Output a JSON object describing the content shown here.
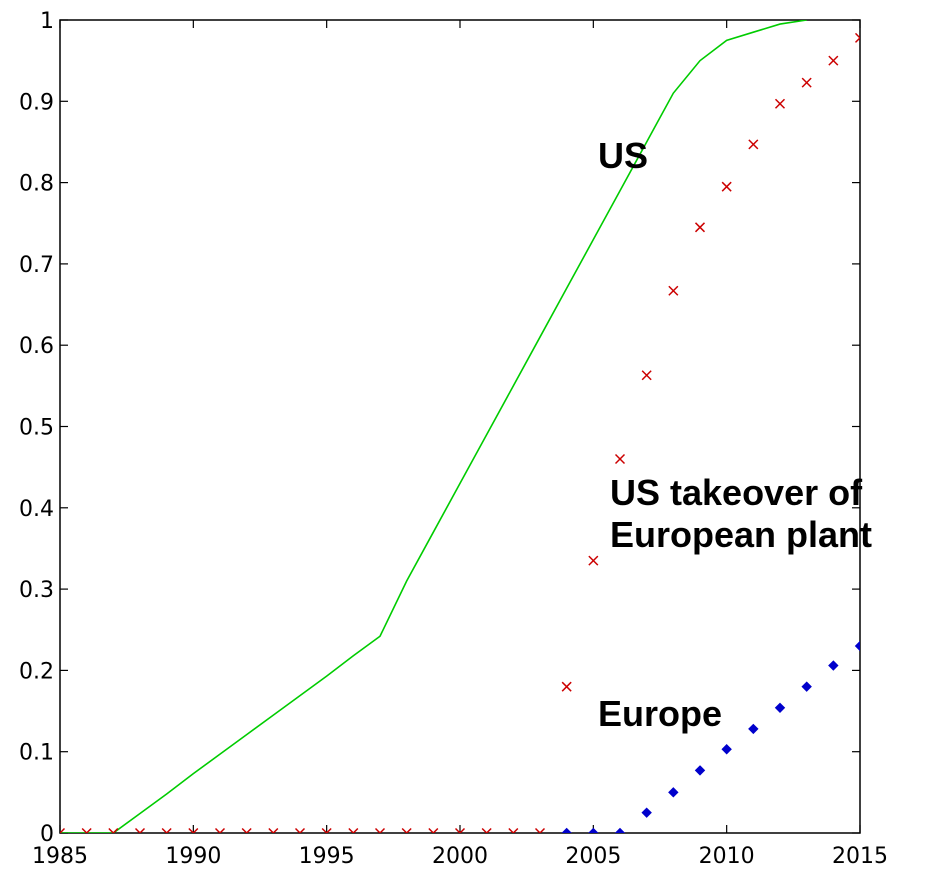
{
  "chart_data": {
    "type": "line",
    "title": "",
    "xlabel": "",
    "ylabel": "",
    "xlim": [
      1985,
      2015
    ],
    "ylim": [
      0,
      1
    ],
    "grid": false,
    "x_ticks": [
      1985,
      1990,
      1995,
      2000,
      2005,
      2010,
      2015
    ],
    "x_tick_labels": [
      "1985",
      "1990",
      "1995",
      "2000",
      "2005",
      "2010",
      "2015"
    ],
    "y_ticks": [
      0,
      0.1,
      0.2,
      0.3,
      0.4,
      0.5,
      0.6,
      0.7,
      0.8,
      0.9,
      1
    ],
    "y_tick_labels": [
      "0",
      "0.1",
      "0.2",
      "0.3",
      "0.4",
      "0.5",
      "0.6",
      "0.7",
      "0.8",
      "0.9",
      "1"
    ],
    "series": [
      {
        "style": "line",
        "color": "#00cc00",
        "x": [
          1985,
          1986,
          1987,
          1988,
          1989,
          1990,
          1991,
          1992,
          1993,
          1994,
          1995,
          1996,
          1997,
          1998,
          1999,
          2000,
          2001,
          2002,
          2003,
          2004,
          2005,
          2006,
          2007,
          2008,
          2009,
          2010,
          2011,
          2012,
          2013
        ],
        "y": [
          0,
          0,
          0,
          0.024,
          0.048,
          0.073,
          0.097,
          0.121,
          0.145,
          0.169,
          0.193,
          0.218,
          0.242,
          0.31,
          0.37,
          0.43,
          0.49,
          0.55,
          0.61,
          0.67,
          0.73,
          0.79,
          0.85,
          0.91,
          0.95,
          0.975,
          0.985,
          0.995,
          1.0
        ]
      },
      {
        "style": "marker-x",
        "color": "#cc0000",
        "x": [
          1985,
          1986,
          1987,
          1988,
          1989,
          1990,
          1991,
          1992,
          1993,
          1994,
          1995,
          1996,
          1997,
          1998,
          1999,
          2000,
          2001,
          2002,
          2003,
          2004,
          2005,
          2006,
          2007,
          2008,
          2009,
          2010,
          2011,
          2012,
          2013,
          2014,
          2015
        ],
        "y": [
          0,
          0,
          0,
          0,
          0,
          0,
          0,
          0,
          0,
          0,
          0,
          0,
          0,
          0,
          0,
          0,
          0,
          0,
          0,
          0.18,
          0.335,
          0.46,
          0.563,
          0.667,
          0.745,
          0.795,
          0.847,
          0.897,
          0.923,
          0.95,
          0.978
        ]
      },
      {
        "style": "marker-diamond",
        "color": "#0000cc",
        "x": [
          2004,
          2005,
          2006,
          2007,
          2008,
          2009,
          2010,
          2011,
          2012,
          2013,
          2014,
          2015
        ],
        "y": [
          0,
          0,
          0,
          0.025,
          0.05,
          0.077,
          0.103,
          0.128,
          0.154,
          0.18,
          0.206,
          0.23
        ]
      }
    ],
    "annotations": [
      {
        "lines": [
          "US"
        ]
      },
      {
        "lines": [
          "US takeover of",
          "European plant"
        ]
      },
      {
        "lines": [
          "Europe"
        ]
      }
    ]
  }
}
